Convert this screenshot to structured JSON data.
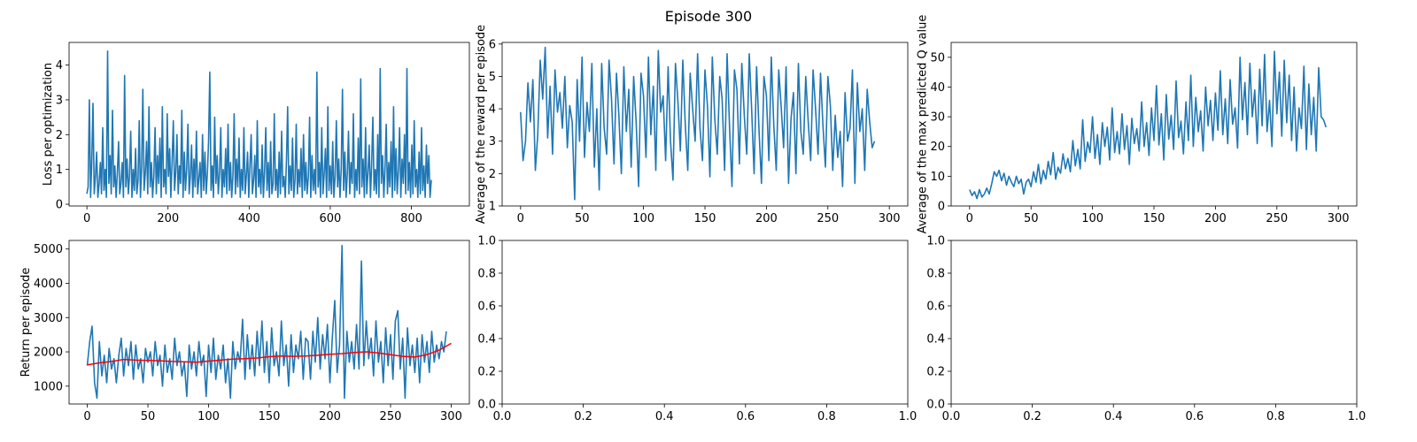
{
  "figure_title": "Episode 300",
  "colors": {
    "line": "#1f77b4",
    "trend": "#ff0000",
    "axis": "#000000"
  },
  "chart_data": [
    {
      "type": "line",
      "id": "loss",
      "xlabel": "",
      "ylabel": "Loss per optimization",
      "xlim": [
        -44,
        943
      ],
      "ylim": [
        -0.05,
        4.65
      ],
      "xticks": [
        0,
        200,
        400,
        600,
        800
      ],
      "yticks": [
        0,
        1,
        2,
        3,
        4
      ],
      "grid": false,
      "series": [
        {
          "x_start": 0,
          "x_step": 3,
          "values": [
            0.3,
            0.5,
            3.0,
            0.2,
            1.2,
            2.9,
            0.3,
            0.8,
            1.5,
            0.2,
            0.6,
            1.2,
            0.3,
            2.2,
            0.4,
            1.0,
            0.2,
            4.4,
            0.6,
            1.4,
            0.3,
            2.7,
            0.5,
            1.1,
            0.2,
            0.9,
            1.8,
            0.3,
            0.6,
            1.2,
            0.2,
            3.7,
            0.5,
            1.3,
            0.3,
            0.8,
            2.1,
            0.2,
            1.0,
            0.4,
            1.6,
            0.3,
            0.7,
            2.4,
            0.2,
            1.1,
            3.3,
            0.4,
            0.9,
            1.8,
            0.3,
            2.8,
            0.5,
            1.2,
            0.2,
            0.8,
            2.2,
            0.3,
            1.4,
            0.6,
            1.9,
            0.2,
            2.8,
            0.5,
            1.0,
            0.3,
            2.6,
            0.8,
            1.6,
            0.2,
            1.2,
            2.4,
            0.4,
            0.9,
            2.0,
            0.3,
            1.1,
            0.6,
            2.7,
            0.2,
            1.5,
            0.4,
            1.0,
            2.3,
            0.3,
            0.8,
            1.7,
            0.2,
            1.3,
            0.5,
            2.1,
            0.3,
            0.7,
            1.2,
            0.2,
            2.0,
            0.4,
            1.5,
            0.3,
            0.9,
            1.8,
            3.8,
            0.4,
            1.1,
            0.2,
            2.5,
            0.6,
            1.4,
            0.3,
            0.9,
            2.2,
            0.2,
            1.0,
            0.5,
            1.6,
            0.3,
            2.3,
            0.4,
            1.2,
            0.2,
            0.8,
            2.6,
            0.3,
            1.3,
            0.5,
            1.9,
            0.2,
            1.0,
            0.4,
            2.2,
            0.3,
            0.8,
            1.5,
            0.2,
            1.1,
            2.0,
            0.3,
            0.7,
            1.4,
            0.2,
            2.4,
            0.5,
            1.0,
            0.3,
            1.7,
            0.2,
            0.9,
            2.2,
            0.4,
            1.2,
            0.2,
            1.8,
            0.3,
            0.6,
            2.6,
            0.4,
            1.0,
            0.2,
            1.5,
            0.3,
            2.1,
            0.5,
            0.8,
            0.2,
            1.3,
            2.8,
            0.3,
            1.1,
            0.4,
            1.9,
            0.2,
            0.7,
            2.3,
            0.3,
            1.0,
            0.5,
            1.6,
            0.2,
            2.0,
            0.4,
            1.2,
            0.3,
            0.8,
            2.5,
            0.2,
            1.4,
            0.4,
            1.0,
            0.3,
            3.8,
            0.5,
            1.2,
            0.2,
            2.2,
            0.3,
            0.9,
            1.6,
            0.2,
            2.8,
            0.4,
            1.1,
            0.3,
            1.8,
            0.2,
            0.8,
            2.4,
            0.5,
            1.3,
            0.2,
            1.0,
            3.3,
            0.4,
            1.5,
            0.2,
            0.9,
            2.1,
            0.3,
            1.2,
            0.6,
            2.6,
            0.2,
            1.0,
            0.4,
            1.9,
            0.3,
            3.6,
            0.5,
            1.3,
            0.2,
            2.2,
            0.3,
            0.9,
            1.7,
            0.2,
            1.1,
            2.5,
            0.4,
            1.0,
            0.3,
            2.0,
            0.2,
            3.9,
            0.6,
            1.4,
            0.2,
            1.0,
            2.3,
            0.3,
            1.2,
            0.5,
            1.8,
            0.2,
            2.8,
            0.4,
            1.6,
            0.3,
            1.0,
            2.2,
            0.2,
            1.3,
            0.6,
            2.0,
            0.3,
            3.9,
            0.4,
            1.2,
            0.2,
            1.7,
            0.3,
            2.4,
            0.5,
            1.0,
            0.2,
            1.5,
            0.3,
            2.2,
            0.4,
            1.1,
            0.2,
            1.7,
            0.6,
            1.4,
            0.2,
            0.7
          ]
        }
      ]
    },
    {
      "type": "line",
      "id": "avg-reward",
      "xlabel": "",
      "ylabel": "Average of the reward per episode",
      "xlim": [
        -15,
        315
      ],
      "ylim": [
        1.0,
        6.05
      ],
      "xticks": [
        0,
        50,
        100,
        150,
        200,
        250,
        300
      ],
      "yticks": [
        1,
        2,
        3,
        4,
        5,
        6
      ],
      "grid": false,
      "series": [
        {
          "x_start": 0,
          "x_step": 2,
          "values": [
            3.9,
            2.4,
            3.0,
            4.8,
            3.6,
            4.9,
            2.1,
            3.2,
            5.5,
            4.3,
            5.9,
            3.1,
            4.7,
            2.6,
            5.2,
            3.9,
            4.5,
            3.4,
            5.0,
            2.8,
            4.1,
            3.6,
            1.2,
            4.9,
            3.0,
            5.6,
            2.5,
            4.2,
            3.3,
            5.4,
            2.2,
            4.0,
            1.5,
            5.4,
            3.4,
            2.6,
            5.5,
            4.3,
            2.3,
            5.1,
            3.8,
            2.0,
            5.3,
            3.3,
            4.6,
            2.2,
            5.0,
            3.6,
            1.6,
            5.1,
            4.4,
            2.5,
            5.6,
            3.2,
            4.7,
            2.1,
            5.8,
            3.9,
            4.4,
            2.4,
            5.3,
            3.0,
            1.8,
            5.4,
            4.2,
            2.7,
            5.5,
            3.5,
            2.1,
            5.1,
            4.0,
            3.0,
            5.7,
            3.4,
            2.4,
            5.2,
            4.1,
            1.9,
            5.6,
            3.7,
            2.6,
            5.0,
            4.3,
            2.1,
            5.7,
            3.4,
            1.6,
            5.2,
            4.6,
            2.3,
            5.4,
            3.8,
            2.6,
            5.7,
            4.0,
            2.0,
            5.3,
            3.3,
            1.7,
            5.0,
            4.4,
            2.4,
            5.6,
            3.5,
            2.1,
            5.2,
            4.1,
            2.8,
            5.3,
            1.7,
            3.7,
            4.5,
            2.0,
            5.4,
            3.3,
            2.6,
            5.0,
            3.6,
            2.4,
            5.2,
            4.0,
            2.6,
            5.1,
            3.5,
            2.2,
            5.0,
            4.1,
            2.1,
            3.8,
            2.5,
            3.3,
            1.6,
            4.5,
            3.0,
            3.4,
            5.2,
            1.7,
            4.8,
            3.3,
            4.0,
            2.1,
            4.6,
            3.6,
            2.8,
            3.0
          ]
        }
      ]
    },
    {
      "type": "line",
      "id": "max-q",
      "xlabel": "",
      "ylabel": "Average of the max predicted Q value",
      "xlim": [
        -15,
        315
      ],
      "ylim": [
        0,
        55
      ],
      "xticks": [
        0,
        50,
        100,
        150,
        200,
        250,
        300
      ],
      "yticks": [
        0,
        10,
        20,
        30,
        40,
        50
      ],
      "grid": false,
      "series": [
        {
          "x_start": 0,
          "x_step": 2,
          "values": [
            5.5,
            3.5,
            4.8,
            2.5,
            5.5,
            3.0,
            4.0,
            6.0,
            4.0,
            7.5,
            11.5,
            10.0,
            12.0,
            8.5,
            11.0,
            7.0,
            10.0,
            8.0,
            6.5,
            10.0,
            7.5,
            9.0,
            4.0,
            8.0,
            9.0,
            6.5,
            11.5,
            8.0,
            14.0,
            7.5,
            12.0,
            9.0,
            15.0,
            10.5,
            18.0,
            9.0,
            13.0,
            11.0,
            17.5,
            12.5,
            16.0,
            11.5,
            22.0,
            13.5,
            19.0,
            12.5,
            29.0,
            15.0,
            21.5,
            18.0,
            30.0,
            16.0,
            24.0,
            14.0,
            28.0,
            20.0,
            26.5,
            15.5,
            33.0,
            18.0,
            25.0,
            17.5,
            31.0,
            19.0,
            27.0,
            14.0,
            29.5,
            21.0,
            26.0,
            18.5,
            35.0,
            20.0,
            28.0,
            17.0,
            33.0,
            22.0,
            40.5,
            20.5,
            31.0,
            15.5,
            37.5,
            22.5,
            30.5,
            19.0,
            42.0,
            23.0,
            28.5,
            17.5,
            35.0,
            22.0,
            44.0,
            20.0,
            36.5,
            25.0,
            32.0,
            18.5,
            40.0,
            27.0,
            35.5,
            22.0,
            38.0,
            25.5,
            45.5,
            24.0,
            36.0,
            21.0,
            42.5,
            27.5,
            33.0,
            19.5,
            50.0,
            29.0,
            41.5,
            24.0,
            48.0,
            30.0,
            39.0,
            21.0,
            46.0,
            27.0,
            51.0,
            25.0,
            35.5,
            20.0,
            52.0,
            31.0,
            45.0,
            23.5,
            49.0,
            28.0,
            44.0,
            22.0,
            40.0,
            18.5,
            33.0,
            26.0,
            47.0,
            19.0,
            41.0,
            24.0,
            36.5,
            18.5,
            46.5,
            30.0,
            29.0,
            26.5
          ]
        }
      ]
    },
    {
      "type": "line",
      "id": "return",
      "xlabel": "",
      "ylabel": "Return per episode",
      "xlim": [
        -15,
        315
      ],
      "ylim": [
        480,
        5250
      ],
      "xticks": [
        0,
        50,
        100,
        150,
        200,
        250,
        300
      ],
      "yticks": [
        1000,
        2000,
        3000,
        4000,
        5000
      ],
      "grid": false,
      "series": [
        {
          "name": "",
          "x_start": 0,
          "x_step": 2,
          "values": [
            1600,
            2300,
            2750,
            1100,
            650,
            2300,
            1300,
            1900,
            1100,
            2100,
            1500,
            1800,
            1100,
            1900,
            2400,
            1300,
            2100,
            1600,
            2300,
            1200,
            2200,
            1500,
            1800,
            1100,
            2100,
            1700,
            2000,
            1300,
            2300,
            1600,
            1900,
            1000,
            2200,
            1400,
            1800,
            1200,
            2400,
            1600,
            2000,
            1300,
            1700,
            700,
            2200,
            1500,
            2000,
            1300,
            2300,
            1600,
            1900,
            700,
            2200,
            1400,
            2400,
            1200,
            1900,
            1500,
            2200,
            1100,
            1800,
            650,
            2300,
            1500,
            2000,
            1700,
            2950,
            1200,
            2500,
            1500,
            2200,
            1300,
            2600,
            1600,
            2900,
            1400,
            2300,
            1100,
            2700,
            1600,
            2000,
            1300,
            2900,
            1600,
            2200,
            1000,
            2500,
            1400,
            2200,
            1800,
            2600,
            1200,
            2400,
            2300,
            1200,
            2600,
            1700,
            3000,
            1500,
            2500,
            1800,
            2800,
            1100,
            2400,
            3500,
            1400,
            2200,
            5100,
            650,
            2600,
            1700,
            2300,
            1500,
            2800,
            1500,
            4650,
            1600,
            2900,
            1800,
            2400,
            1300,
            2900,
            1700,
            2300,
            1100,
            2700,
            1600,
            2500,
            1200,
            2900,
            3200,
            1500,
            2400,
            650,
            2700,
            1600,
            2200,
            1400,
            2400,
            1100,
            2500,
            1700,
            2300,
            1400,
            2600,
            1700,
            2200,
            1800,
            2300,
            2000,
            2600
          ]
        },
        {
          "name": "",
          "x_start": 0,
          "x_step": 10,
          "values": [
            1620,
            1680,
            1720,
            1780,
            1760,
            1750,
            1740,
            1720,
            1710,
            1700,
            1730,
            1760,
            1790,
            1800,
            1820,
            1860,
            1880,
            1870,
            1880,
            1900,
            1930,
            1950,
            1980,
            2000,
            1970,
            1920,
            1870,
            1850,
            1920,
            2050,
            2250
          ]
        }
      ]
    },
    {
      "type": "line",
      "id": "empty-1",
      "xlabel": "",
      "ylabel": "",
      "xlim": [
        0,
        1
      ],
      "ylim": [
        0,
        1
      ],
      "xticks": [
        0.0,
        0.2,
        0.4,
        0.6,
        0.8,
        1.0
      ],
      "yticks": [
        0.0,
        0.2,
        0.4,
        0.6,
        0.8,
        1.0
      ],
      "grid": false,
      "series": []
    },
    {
      "type": "line",
      "id": "empty-2",
      "xlabel": "",
      "ylabel": "",
      "xlim": [
        0,
        1
      ],
      "ylim": [
        0,
        1
      ],
      "xticks": [
        0.0,
        0.2,
        0.4,
        0.6,
        0.8,
        1.0
      ],
      "yticks": [
        0.0,
        0.2,
        0.4,
        0.6,
        0.8,
        1.0
      ],
      "grid": false,
      "series": []
    }
  ]
}
